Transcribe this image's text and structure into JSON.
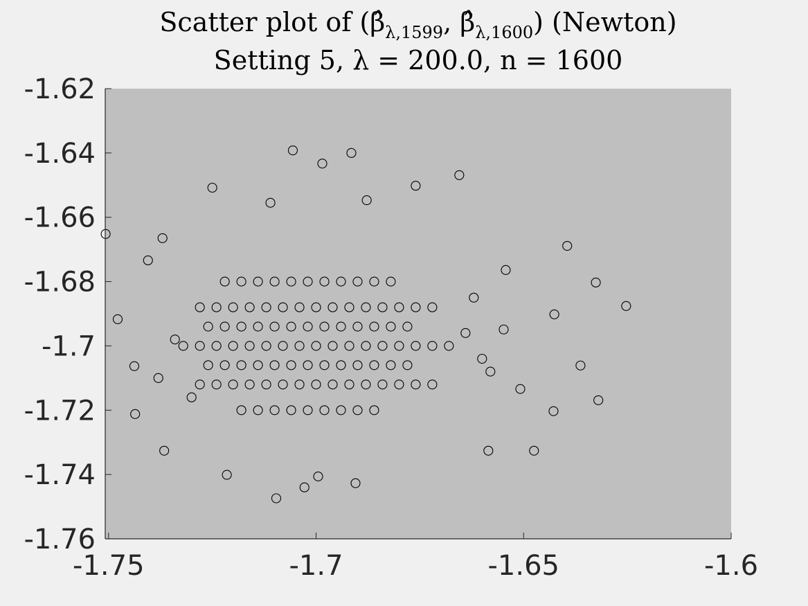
{
  "chart_data": {
    "type": "scatter",
    "title_parts": [
      "Scatter plot of (",
      "β̂",
      "λ,1599",
      ", ",
      "β̂",
      "λ,1600",
      ") (Newton)"
    ],
    "subtitle": "Setting 5, λ = 200.0, n = 1600",
    "marker": "open-circle",
    "color": "#000000",
    "background": "#bfbfbf",
    "xlim": [
      -1.7508,
      -1.6
    ],
    "ylim": [
      -1.76,
      -1.62
    ],
    "xticks": [
      -1.75,
      -1.7,
      -1.65,
      -1.6
    ],
    "yticks": [
      -1.76,
      -1.74,
      -1.72,
      -1.7,
      -1.68,
      -1.66,
      -1.64,
      -1.62
    ],
    "grid": false,
    "x": [
      -1.7507,
      -1.6253,
      -1.6326,
      -1.6395,
      -1.6363,
      -1.632,
      -1.6426,
      -1.6428,
      -1.6475,
      -1.6508,
      -1.6543,
      -1.6548,
      -1.6585,
      -1.6655,
      -1.7056,
      -1.6985,
      -1.6915,
      -1.7028,
      -1.7096,
      -1.6995,
      -1.6905,
      -1.7215,
      -1.7436,
      -1.7366,
      -1.7478,
      -1.7438,
      -1.7405,
      -1.737,
      -1.725,
      -1.676,
      -1.6878,
      -1.711,
      -1.7,
      -1.704,
      -1.696,
      -1.708,
      -1.692,
      -1.712,
      -1.688,
      -1.716,
      -1.684,
      -1.72,
      -1.68,
      -1.724,
      -1.676,
      -1.728,
      -1.672,
      -1.732,
      -1.668,
      -1.7,
      -1.704,
      -1.696,
      -1.708,
      -1.692,
      -1.712,
      -1.688,
      -1.716,
      -1.684,
      -1.72,
      -1.68,
      -1.724,
      -1.676,
      -1.728,
      -1.672,
      -1.7,
      -1.704,
      -1.696,
      -1.708,
      -1.692,
      -1.712,
      -1.688,
      -1.716,
      -1.684,
      -1.72,
      -1.68,
      -1.724,
      -1.676,
      -1.728,
      -1.672,
      -1.702,
      -1.706,
      -1.698,
      -1.71,
      -1.694,
      -1.714,
      -1.69,
      -1.718,
      -1.686,
      -1.722,
      -1.682,
      -1.726,
      -1.678,
      -1.702,
      -1.706,
      -1.698,
      -1.71,
      -1.694,
      -1.714,
      -1.69,
      -1.718,
      -1.686,
      -1.722,
      -1.682,
      -1.726,
      -1.678,
      -1.702,
      -1.706,
      -1.698,
      -1.71,
      -1.694,
      -1.714,
      -1.69,
      -1.718,
      -1.686,
      -1.722,
      -1.682,
      -1.702,
      -1.706,
      -1.698,
      -1.71,
      -1.694,
      -1.714,
      -1.69,
      -1.718,
      -1.686,
      -1.664,
      -1.66,
      -1.734,
      -1.738,
      -1.73,
      -1.662,
      -1.658
    ],
    "y": [
      -1.6652,
      -1.6876,
      -1.6803,
      -1.6689,
      -1.7061,
      -1.7169,
      -1.6902,
      -1.7203,
      -1.7326,
      -1.7134,
      -1.6764,
      -1.6949,
      -1.7326,
      -1.6469,
      -1.6392,
      -1.6433,
      -1.64,
      -1.744,
      -1.7474,
      -1.7406,
      -1.7427,
      -1.7401,
      -1.7212,
      -1.7326,
      -1.6917,
      -1.7063,
      -1.6734,
      -1.6665,
      -1.6508,
      -1.6502,
      -1.6547,
      -1.6555,
      -1.7,
      -1.7,
      -1.7,
      -1.7,
      -1.7,
      -1.7,
      -1.7,
      -1.7,
      -1.7,
      -1.7,
      -1.7,
      -1.7,
      -1.7,
      -1.7,
      -1.7,
      -1.7,
      -1.7,
      -1.688,
      -1.688,
      -1.688,
      -1.688,
      -1.688,
      -1.688,
      -1.688,
      -1.688,
      -1.688,
      -1.688,
      -1.688,
      -1.688,
      -1.688,
      -1.688,
      -1.688,
      -1.712,
      -1.712,
      -1.712,
      -1.712,
      -1.712,
      -1.712,
      -1.712,
      -1.712,
      -1.712,
      -1.712,
      -1.712,
      -1.712,
      -1.712,
      -1.712,
      -1.712,
      -1.694,
      -1.694,
      -1.694,
      -1.694,
      -1.694,
      -1.694,
      -1.694,
      -1.694,
      -1.694,
      -1.694,
      -1.694,
      -1.694,
      -1.694,
      -1.706,
      -1.706,
      -1.706,
      -1.706,
      -1.706,
      -1.706,
      -1.706,
      -1.706,
      -1.706,
      -1.706,
      -1.706,
      -1.706,
      -1.706,
      -1.68,
      -1.68,
      -1.68,
      -1.68,
      -1.68,
      -1.68,
      -1.68,
      -1.68,
      -1.68,
      -1.68,
      -1.68,
      -1.72,
      -1.72,
      -1.72,
      -1.72,
      -1.72,
      -1.72,
      -1.72,
      -1.72,
      -1.72,
      -1.696,
      -1.704,
      -1.698,
      -1.71,
      -1.716,
      -1.685,
      -1.708
    ]
  }
}
